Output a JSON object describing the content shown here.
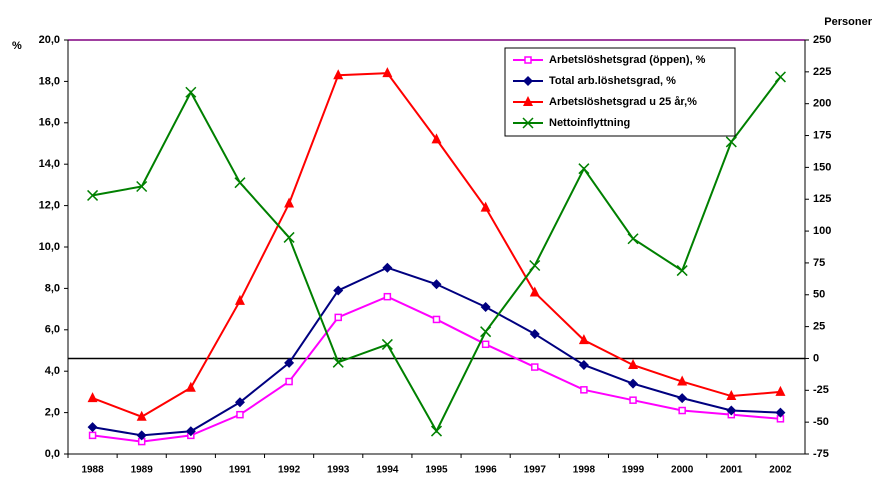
{
  "chart_data": {
    "type": "line",
    "y_label": "%",
    "y2_label": "Personer",
    "categories": [
      "1988",
      "1989",
      "1990",
      "1991",
      "1992",
      "1993",
      "1994",
      "1995",
      "1996",
      "1997",
      "1998",
      "1999",
      "2000",
      "2001",
      "2002"
    ],
    "series": [
      {
        "name": "Arbetslöshetsgrad (öppen), %",
        "color": "#ff00ff",
        "marker": "square",
        "values": [
          0.9,
          0.6,
          0.9,
          1.9,
          3.5,
          6.6,
          7.6,
          6.5,
          5.3,
          4.2,
          3.1,
          2.6,
          2.1,
          1.9,
          1.7
        ]
      },
      {
        "name": "Total arb.löshetsgrad, %",
        "color": "#000080",
        "marker": "diamond",
        "values": [
          1.3,
          0.9,
          1.1,
          2.5,
          4.4,
          7.9,
          9.0,
          8.2,
          7.1,
          5.8,
          4.3,
          3.4,
          2.7,
          2.1,
          2.0
        ]
      },
      {
        "name": "Arbetslöshetsgrad u 25 år,%",
        "color": "#ff0000",
        "marker": "triangle",
        "values": [
          2.7,
          1.8,
          3.2,
          7.4,
          12.1,
          18.3,
          18.4,
          15.2,
          11.9,
          7.8,
          5.5,
          4.3,
          3.5,
          2.8,
          3.0
        ]
      },
      {
        "name": "Nettoinflyttning",
        "color": "#008000",
        "marker": "x",
        "axis": "y2",
        "values": [
          128,
          135,
          209,
          138,
          95,
          -3,
          11,
          -57,
          21,
          73,
          149,
          94,
          69,
          170,
          221
        ]
      }
    ],
    "ylim": [
      0,
      20
    ],
    "yticks": [
      {
        "value": 0,
        "label": "0,0"
      },
      {
        "value": 2,
        "label": "2,0"
      },
      {
        "value": 4,
        "label": "4,0"
      },
      {
        "value": 6,
        "label": "6,0"
      },
      {
        "value": 8,
        "label": "8,0"
      },
      {
        "value": 10,
        "label": "10,0"
      },
      {
        "value": 12,
        "label": "12,0"
      },
      {
        "value": 14,
        "label": "14,0"
      },
      {
        "value": 16,
        "label": "16,0"
      },
      {
        "value": 18,
        "label": "18,0"
      },
      {
        "value": 20,
        "label": "20,0"
      }
    ],
    "y2lim": [
      -75,
      250
    ],
    "y2ticks": [
      -75,
      -50,
      -25,
      0,
      25,
      50,
      75,
      100,
      125,
      150,
      175,
      200,
      225,
      250
    ],
    "legend": "top-right"
  }
}
